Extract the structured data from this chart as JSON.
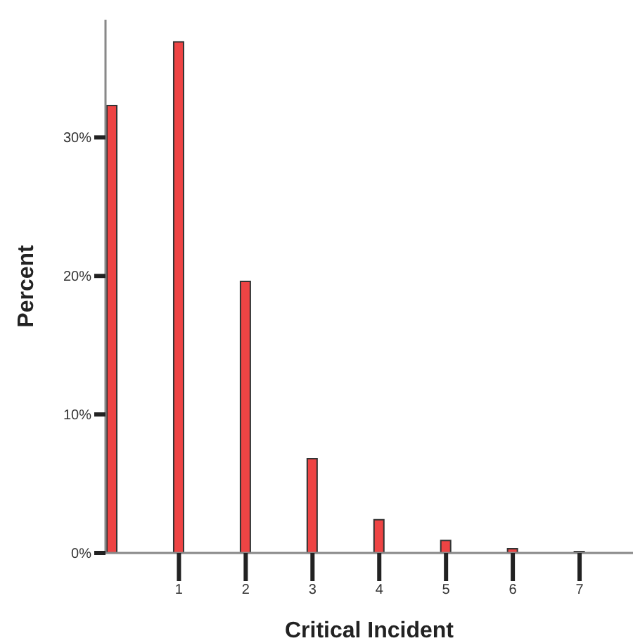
{
  "chart_data": {
    "type": "bar",
    "xlabel": "Critical Incident",
    "ylabel": "Percent",
    "x": [
      0,
      1,
      2,
      3,
      4,
      5,
      6,
      7
    ],
    "values": [
      32.3,
      36.9,
      19.6,
      6.8,
      2.4,
      0.9,
      0.3,
      0.1
    ],
    "color": "#ee4444",
    "xlim": [
      -0.1,
      7.8
    ],
    "xticks": [
      1,
      2,
      3,
      4,
      5,
      6,
      7
    ],
    "ylim": [
      0,
      38.5
    ],
    "yticks": [
      {
        "value": 0,
        "label": "0%"
      },
      {
        "value": 10,
        "label": "10%"
      },
      {
        "value": 20,
        "label": "20%"
      },
      {
        "value": 30,
        "label": "30%"
      }
    ],
    "grid": false,
    "legend": false
  }
}
